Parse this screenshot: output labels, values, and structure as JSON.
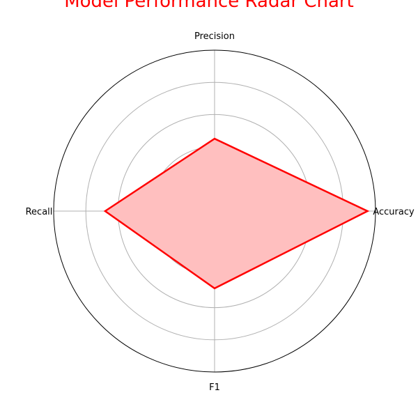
{
  "chart_data": {
    "type": "radar",
    "title": "Model Performance Radar Chart",
    "categories": [
      "Accuracy",
      "Precision",
      "Recall",
      "F1"
    ],
    "series": [
      {
        "values": [
          0.95,
          0.45,
          0.68,
          0.48
        ]
      }
    ],
    "rlim": [
      0,
      1
    ],
    "grid_rings": [
      0.2,
      0.4,
      0.6,
      0.8
    ],
    "grid": true,
    "colors": {
      "line": "#ff0000",
      "fill": "#ffbfbf",
      "grid": "#b0b0b0",
      "frame": "#000000",
      "title": "#ff0000"
    }
  }
}
